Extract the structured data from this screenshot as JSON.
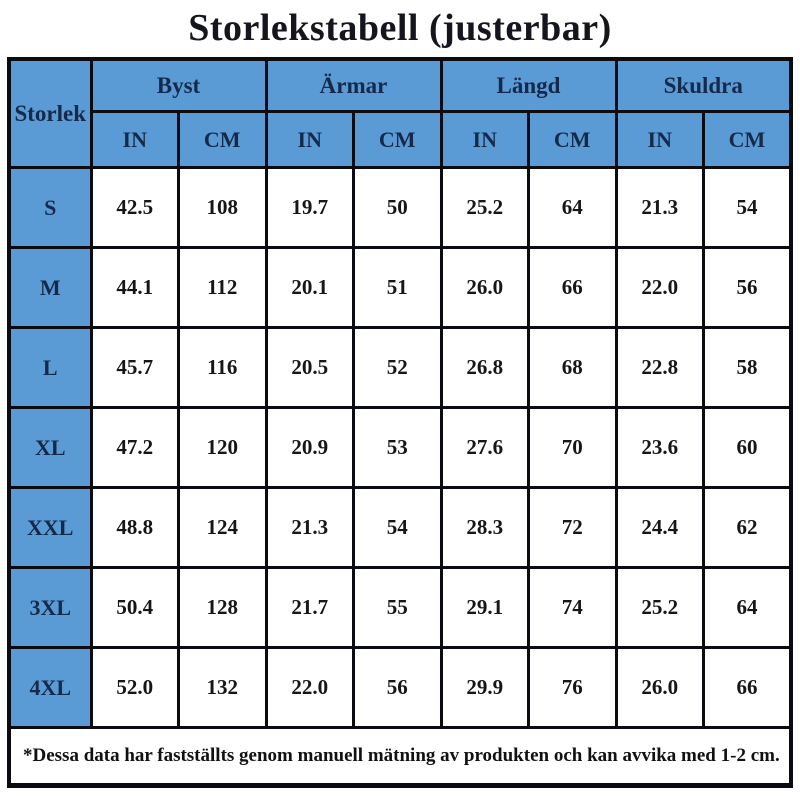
{
  "title": "Storlekstabell (justerbar)",
  "colors": {
    "header_blue": "#5B9BD5",
    "grid_border": "#0b0b12",
    "header_text": "#152a4a",
    "value_text": "#161616",
    "background": "#ffffff"
  },
  "chart_data": {
    "type": "table",
    "title": "Storlekstabell (justerbar)",
    "corner_header": "Storlek",
    "column_groups": [
      "Byst",
      "Ärmar",
      "Längd",
      "Skuldra"
    ],
    "unit_headers": [
      "IN",
      "CM",
      "IN",
      "CM",
      "IN",
      "CM",
      "IN",
      "CM"
    ],
    "rows": [
      {
        "size": "S",
        "values": [
          "42.5",
          "108",
          "19.7",
          "50",
          "25.2",
          "64",
          "21.3",
          "54"
        ]
      },
      {
        "size": "M",
        "values": [
          "44.1",
          "112",
          "20.1",
          "51",
          "26.0",
          "66",
          "22.0",
          "56"
        ]
      },
      {
        "size": "L",
        "values": [
          "45.7",
          "116",
          "20.5",
          "52",
          "26.8",
          "68",
          "22.8",
          "58"
        ]
      },
      {
        "size": "XL",
        "values": [
          "47.2",
          "120",
          "20.9",
          "53",
          "27.6",
          "70",
          "23.6",
          "60"
        ]
      },
      {
        "size": "XXL",
        "values": [
          "48.8",
          "124",
          "21.3",
          "54",
          "28.3",
          "72",
          "24.4",
          "62"
        ]
      },
      {
        "size": "3XL",
        "values": [
          "50.4",
          "128",
          "21.7",
          "55",
          "29.1",
          "74",
          "25.2",
          "64"
        ]
      },
      {
        "size": "4XL",
        "values": [
          "52.0",
          "132",
          "22.0",
          "56",
          "29.9",
          "76",
          "26.0",
          "66"
        ]
      }
    ],
    "footnote": "*Dessa data har fastställts genom manuell mätning av produkten och kan avvika med 1-2 cm."
  }
}
